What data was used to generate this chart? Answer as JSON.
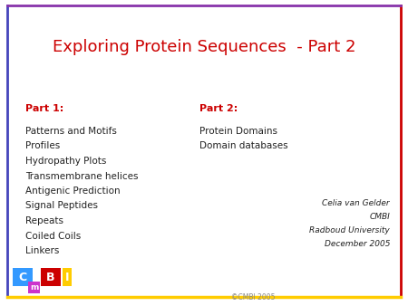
{
  "title": "Exploring Protein Sequences  - Part 2",
  "title_color": "#cc0000",
  "title_fontsize": 13,
  "bg_color": "#ffffff",
  "border_left_color": "#4444bb",
  "border_right_color": "#cc0000",
  "border_top_color": "#8833aa",
  "border_bottom_color": "#ffcc00",
  "part1_label": "Part 1:",
  "part1_color": "#cc0000",
  "part1_items": [
    "Patterns and Motifs",
    "Profiles",
    "Hydropathy Plots",
    "Transmembrane helices",
    "Antigenic Prediction",
    "Signal Peptides",
    "Repeats",
    "Coiled Coils",
    "Linkers"
  ],
  "part2_label": "Part 2:",
  "part2_color": "#cc0000",
  "part2_items": [
    "Protein Domains",
    "Domain databases"
  ],
  "credit_lines": [
    "Celia van Gelder",
    "CMBI",
    "Radboud University",
    "December 2005"
  ],
  "copyright_text": "©CMBI 2005",
  "logo_C_color": "#3399ff",
  "logo_m_color": "#cc33cc",
  "logo_B_color": "#cc0000",
  "logo_I_color": "#ffcc00",
  "text_color": "#222222",
  "body_fontsize": 7.5,
  "credit_fontsize": 6.5,
  "label_fontsize": 8
}
